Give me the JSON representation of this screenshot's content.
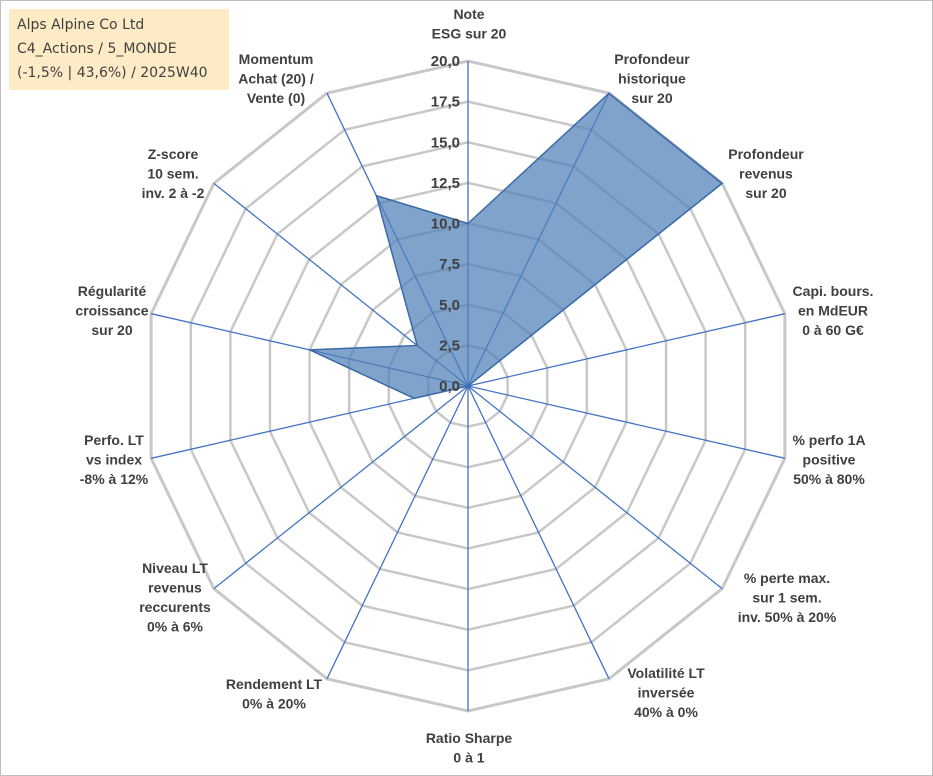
{
  "info": {
    "line1": "Alps Alpine Co Ltd",
    "line2": "C4_Actions / 5_MONDE",
    "line3": "(-1,5% | 43,6%) / 2025W40"
  },
  "colors": {
    "fill": "#4f7fb8",
    "stroke": "#3a6aa8",
    "grid": "#c8c8c8",
    "spoke": "#4472c4",
    "info_bg": "#fdebc6",
    "text": "#404040"
  },
  "chart_data": {
    "type": "radar",
    "title": "",
    "range": [
      0,
      20
    ],
    "ticks": [
      "0,0",
      "2,5",
      "5,0",
      "7,5",
      "10,0",
      "12,5",
      "15,0",
      "17,5",
      "20,0"
    ],
    "categories": [
      [
        "Note",
        "ESG sur 20"
      ],
      [
        "Profondeur",
        "historique",
        "sur 20"
      ],
      [
        "Profondeur",
        "revenus",
        "sur 20"
      ],
      [
        "Capi. bours.",
        "en MdEUR",
        "0 à 60 G€"
      ],
      [
        "% perfo 1A",
        "positive",
        "50% à 80%"
      ],
      [
        "% perte max.",
        "sur 1 sem.",
        "inv. 50% à 20%"
      ],
      [
        "Volatilité LT",
        "inversée",
        "40% à 0%"
      ],
      [
        "Ratio Sharpe",
        "0 à 1"
      ],
      [
        "Rendement LT",
        "0% à 20%"
      ],
      [
        "Niveau LT",
        "revenus",
        "reccurents",
        "0% à 6%"
      ],
      [
        "Perfo. LT",
        "vs index",
        "-8% à 12%"
      ],
      [
        "Régularité",
        "croissance",
        "sur 20"
      ],
      [
        "Z-score",
        "10 sem.",
        "inv. 2 à -2"
      ],
      [
        "Momentum",
        "Achat (20) /",
        "Vente (0)"
      ]
    ],
    "values": [
      10.0,
      20.0,
      20.0,
      0.0,
      0.0,
      0.0,
      0.0,
      0.0,
      0.0,
      0.0,
      3.4,
      10.0,
      4.0,
      13.0
    ],
    "grid": true,
    "legend": "none"
  }
}
